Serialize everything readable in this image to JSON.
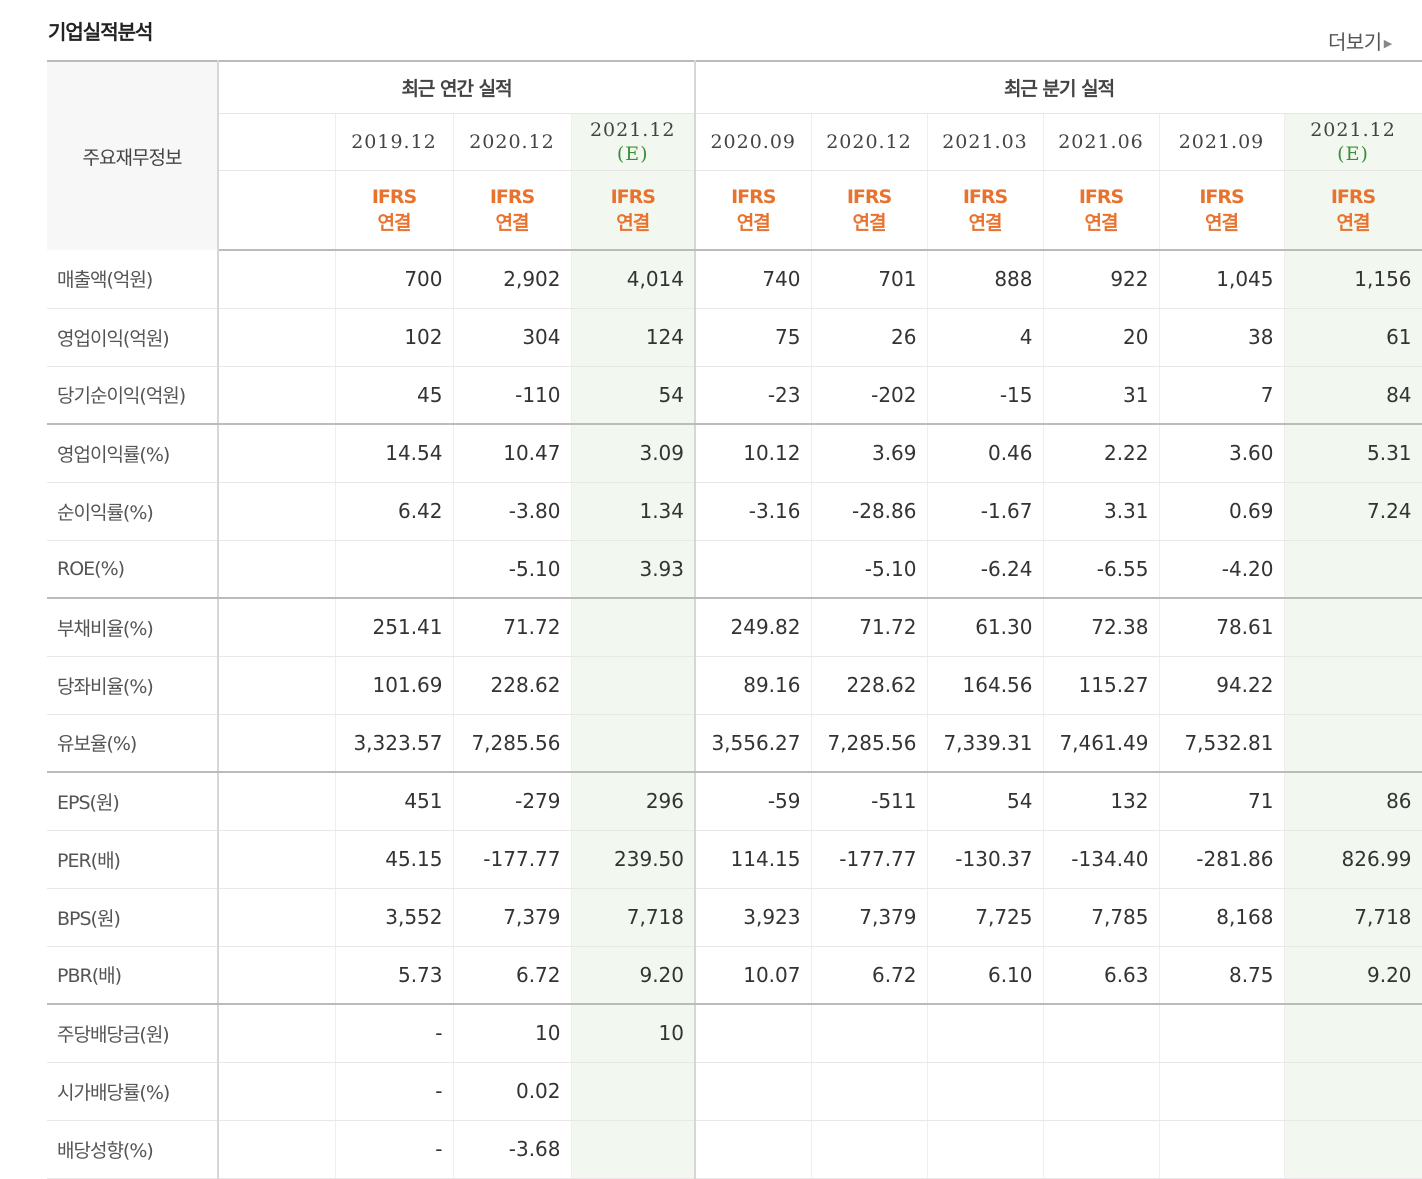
{
  "header": {
    "title": "기업실적분석",
    "more_label": "더보기"
  },
  "table": {
    "row_header": "주요재무정보",
    "annual_group": "최근 연간 실적",
    "quarter_group": "최근 분기 실적",
    "annual_periods": [
      {
        "date": "2019.12",
        "est": ""
      },
      {
        "date": "2020.12",
        "est": ""
      },
      {
        "date": "2021.12",
        "est": "(E)"
      }
    ],
    "quarter_periods": [
      {
        "date": "2020.09",
        "est": ""
      },
      {
        "date": "2020.12",
        "est": ""
      },
      {
        "date": "2021.03",
        "est": ""
      },
      {
        "date": "2021.06",
        "est": ""
      },
      {
        "date": "2021.09",
        "est": ""
      },
      {
        "date": "2021.12",
        "est": "(E)"
      }
    ],
    "basis": "IFRS\n연결",
    "rows": [
      {
        "label": "매출액(억원)",
        "values": [
          "700",
          "2,902",
          "4,014",
          "740",
          "701",
          "888",
          "922",
          "1,045",
          "1,156"
        ]
      },
      {
        "label": "영업이익(억원)",
        "values": [
          "102",
          "304",
          "124",
          "75",
          "26",
          "4",
          "20",
          "38",
          "61"
        ]
      },
      {
        "label": "당기순이익(억원)",
        "values": [
          "45",
          "-110",
          "54",
          "-23",
          "-202",
          "-15",
          "31",
          "7",
          "84"
        ]
      },
      {
        "label": "영업이익률(%)",
        "values": [
          "14.54",
          "10.47",
          "3.09",
          "10.12",
          "3.69",
          "0.46",
          "2.22",
          "3.60",
          "5.31"
        ]
      },
      {
        "label": "순이익률(%)",
        "values": [
          "6.42",
          "-3.80",
          "1.34",
          "-3.16",
          "-28.86",
          "-1.67",
          "3.31",
          "0.69",
          "7.24"
        ]
      },
      {
        "label": "ROE(%)",
        "values": [
          "",
          "-5.10",
          "3.93",
          "",
          "-5.10",
          "-6.24",
          "-6.55",
          "-4.20",
          ""
        ]
      },
      {
        "label": "부채비율(%)",
        "values": [
          "251.41",
          "71.72",
          "",
          "249.82",
          "71.72",
          "61.30",
          "72.38",
          "78.61",
          ""
        ]
      },
      {
        "label": "당좌비율(%)",
        "values": [
          "101.69",
          "228.62",
          "",
          "89.16",
          "228.62",
          "164.56",
          "115.27",
          "94.22",
          ""
        ]
      },
      {
        "label": "유보율(%)",
        "values": [
          "3,323.57",
          "7,285.56",
          "",
          "3,556.27",
          "7,285.56",
          "7,339.31",
          "7,461.49",
          "7,532.81",
          ""
        ]
      },
      {
        "label": "EPS(원)",
        "values": [
          "451",
          "-279",
          "296",
          "-59",
          "-511",
          "54",
          "132",
          "71",
          "86"
        ]
      },
      {
        "label": "PER(배)",
        "values": [
          "45.15",
          "-177.77",
          "239.50",
          "114.15",
          "-177.77",
          "-130.37",
          "-134.40",
          "-281.86",
          "826.99"
        ]
      },
      {
        "label": "BPS(원)",
        "values": [
          "3,552",
          "7,379",
          "7,718",
          "3,923",
          "7,379",
          "7,725",
          "7,785",
          "8,168",
          "7,718"
        ]
      },
      {
        "label": "PBR(배)",
        "values": [
          "5.73",
          "6.72",
          "9.20",
          "10.07",
          "6.72",
          "6.10",
          "6.63",
          "8.75",
          "9.20"
        ]
      },
      {
        "label": "주당배당금(원)",
        "values": [
          "-",
          "10",
          "10",
          "",
          "",
          "",
          "",
          "",
          ""
        ]
      },
      {
        "label": "시가배당률(%)",
        "values": [
          "-",
          "0.02",
          "",
          "",
          "",
          "",
          "",
          "",
          ""
        ]
      },
      {
        "label": "배당성향(%)",
        "values": [
          "-",
          "-3.68",
          "",
          "",
          "",
          "",
          "",
          "",
          ""
        ]
      }
    ],
    "colors": {
      "negative": "#d31e1e",
      "ifrs": "#e8732f",
      "estimate_bg": "#f2f8f0",
      "estimate_text": "#3a8f3a"
    }
  }
}
